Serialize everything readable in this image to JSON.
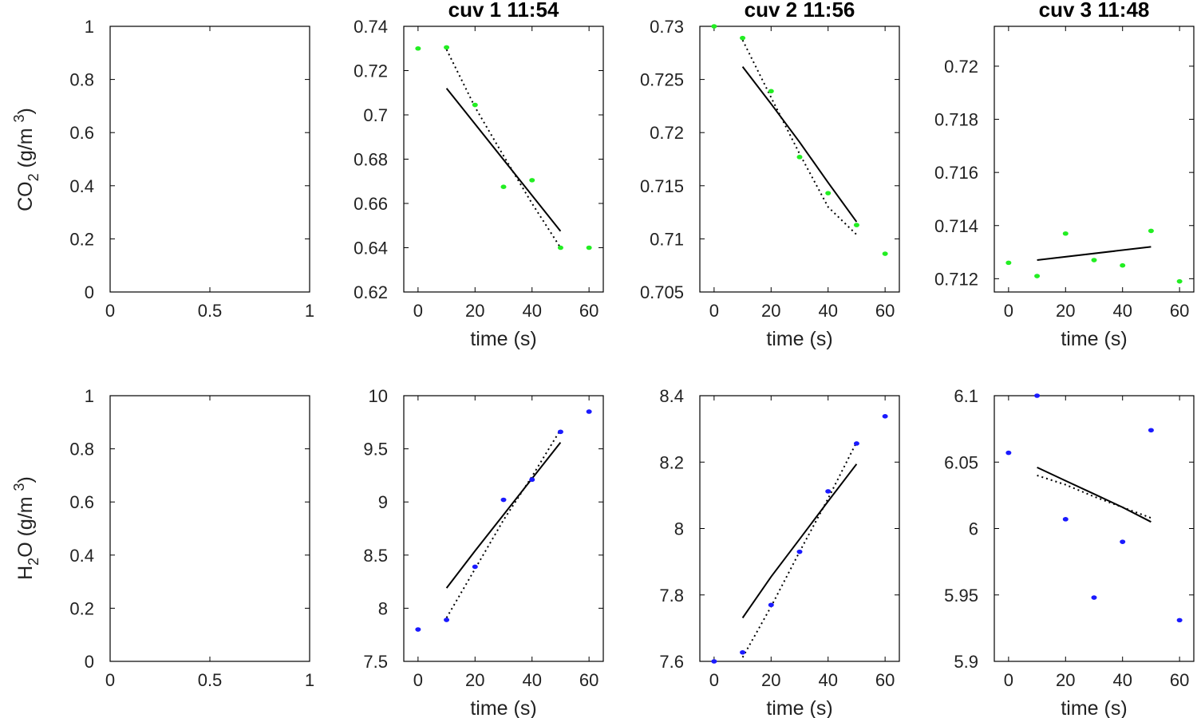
{
  "row_ylabels": [
    {
      "main": "CO",
      "sub": "2",
      "rest": " (g/m ",
      "sup": "3",
      "end": ")"
    },
    {
      "main": "H",
      "sub": "2",
      "rest": "O (g/m ",
      "sup": "3",
      "end": ")"
    }
  ],
  "colors": {
    "co2": "#22ee22",
    "h2o": "#1a1aff",
    "fit": "#000000"
  },
  "chart_data": [
    {
      "id": "co2-empty",
      "type": "scatter",
      "title": "",
      "xlabel": "",
      "ylabel": "CO2 (g/m 3)",
      "xlim": [
        0,
        1
      ],
      "ylim": [
        0,
        1
      ],
      "xticks": [
        0,
        0.5,
        1
      ],
      "xtick_labels": [
        "0",
        "0.5",
        "1"
      ],
      "yticks": [
        0,
        0.2,
        0.4,
        0.6,
        0.8,
        1
      ],
      "ytick_labels": [
        "0",
        "0.2",
        "0.4",
        "0.6",
        "0.8",
        "1"
      ],
      "points": [],
      "fit_solid": [],
      "fit_dotted": []
    },
    {
      "id": "co2-cuv1",
      "type": "scatter",
      "title": "cuv 1 11:54",
      "xlabel": "time (s)",
      "ylabel": "",
      "xlim": [
        -5,
        65
      ],
      "ylim": [
        0.62,
        0.74
      ],
      "xticks": [
        0,
        20,
        40,
        60
      ],
      "xtick_labels": [
        "0",
        "20",
        "40",
        "60"
      ],
      "yticks": [
        0.62,
        0.64,
        0.66,
        0.68,
        0.7,
        0.72,
        0.74
      ],
      "ytick_labels": [
        "0.62",
        "0.64",
        "0.66",
        "0.68",
        "0.7",
        "0.72",
        "0.74"
      ],
      "series_color": "co2",
      "points": [
        [
          0,
          0.73
        ],
        [
          10,
          0.7305
        ],
        [
          20,
          0.7045
        ],
        [
          30,
          0.6675
        ],
        [
          40,
          0.6705
        ],
        [
          50,
          0.64
        ],
        [
          60,
          0.64
        ]
      ],
      "fit_solid": [
        [
          10,
          0.712
        ],
        [
          50,
          0.6475
        ]
      ],
      "fit_dotted": [
        [
          10,
          0.7295
        ],
        [
          20,
          0.7035
        ],
        [
          30,
          0.6815
        ],
        [
          40,
          0.66
        ],
        [
          50,
          0.64
        ]
      ]
    },
    {
      "id": "co2-cuv2",
      "type": "scatter",
      "title": "cuv 2 11:56",
      "xlabel": "time (s)",
      "ylabel": "",
      "xlim": [
        -5,
        65
      ],
      "ylim": [
        0.705,
        0.73
      ],
      "xticks": [
        0,
        20,
        40,
        60
      ],
      "xtick_labels": [
        "0",
        "20",
        "40",
        "60"
      ],
      "yticks": [
        0.705,
        0.71,
        0.715,
        0.72,
        0.725,
        0.73
      ],
      "ytick_labels": [
        "0.705",
        "0.71",
        "0.715",
        "0.72",
        "0.725",
        "0.73"
      ],
      "series_color": "co2",
      "points": [
        [
          0,
          0.73
        ],
        [
          10,
          0.7289
        ],
        [
          20,
          0.7239
        ],
        [
          30,
          0.7177
        ],
        [
          40,
          0.7143
        ],
        [
          50,
          0.7113
        ],
        [
          60,
          0.7086
        ]
      ],
      "fit_solid": [
        [
          10,
          0.7262
        ],
        [
          20,
          0.7227
        ],
        [
          30,
          0.7191
        ],
        [
          40,
          0.7153
        ],
        [
          50,
          0.7116
        ]
      ],
      "fit_dotted": [
        [
          10,
          0.7287
        ],
        [
          20,
          0.7233
        ],
        [
          30,
          0.718
        ],
        [
          40,
          0.713
        ],
        [
          50,
          0.7104
        ]
      ]
    },
    {
      "id": "co2-cuv3",
      "type": "scatter",
      "title": "cuv 3 11:48",
      "xlabel": "time (s)",
      "ylabel": "",
      "xlim": [
        -5,
        65
      ],
      "ylim": [
        0.7115,
        0.7215
      ],
      "xticks": [
        0,
        20,
        40,
        60
      ],
      "xtick_labels": [
        "0",
        "20",
        "40",
        "60"
      ],
      "yticks": [
        0.712,
        0.714,
        0.716,
        0.718,
        0.72
      ],
      "ytick_labels": [
        "0.712",
        "0.714",
        "0.716",
        "0.718",
        "0.72"
      ],
      "series_color": "co2",
      "points": [
        [
          0,
          0.7126
        ],
        [
          10,
          0.7121
        ],
        [
          20,
          0.7137
        ],
        [
          30,
          0.7127
        ],
        [
          40,
          0.7125
        ],
        [
          50,
          0.7138
        ],
        [
          60,
          0.7119
        ]
      ],
      "fit_solid": [
        [
          10,
          0.7127
        ],
        [
          50,
          0.7132
        ]
      ],
      "fit_dotted": []
    },
    {
      "id": "h2o-empty",
      "type": "scatter",
      "title": "",
      "xlabel": "",
      "ylabel": "H2O (g/m 3)",
      "xlim": [
        0,
        1
      ],
      "ylim": [
        0,
        1
      ],
      "xticks": [
        0,
        0.5,
        1
      ],
      "xtick_labels": [
        "0",
        "0.5",
        "1"
      ],
      "yticks": [
        0,
        0.2,
        0.4,
        0.6,
        0.8,
        1
      ],
      "ytick_labels": [
        "0",
        "0.2",
        "0.4",
        "0.6",
        "0.8",
        "1"
      ],
      "points": [],
      "fit_solid": [],
      "fit_dotted": []
    },
    {
      "id": "h2o-cuv1",
      "type": "scatter",
      "title": "",
      "xlabel": "time (s)",
      "ylabel": "",
      "xlim": [
        -5,
        65
      ],
      "ylim": [
        7.5,
        10
      ],
      "xticks": [
        0,
        20,
        40,
        60
      ],
      "xtick_labels": [
        "0",
        "20",
        "40",
        "60"
      ],
      "yticks": [
        7.5,
        8,
        8.5,
        9,
        9.5,
        10
      ],
      "ytick_labels": [
        "7.5",
        "8",
        "8.5",
        "9",
        "9.5",
        "10"
      ],
      "series_color": "h2o",
      "points": [
        [
          0,
          7.8
        ],
        [
          10,
          7.89
        ],
        [
          20,
          8.39
        ],
        [
          30,
          9.02
        ],
        [
          40,
          9.21
        ],
        [
          50,
          9.66
        ],
        [
          60,
          9.85
        ]
      ],
      "fit_solid": [
        [
          10,
          8.19
        ],
        [
          20,
          8.54
        ],
        [
          30,
          8.88
        ],
        [
          40,
          9.22
        ],
        [
          50,
          9.56
        ]
      ],
      "fit_dotted": [
        [
          10,
          7.91
        ],
        [
          20,
          8.37
        ],
        [
          30,
          8.83
        ],
        [
          40,
          9.24
        ],
        [
          50,
          9.68
        ]
      ]
    },
    {
      "id": "h2o-cuv2",
      "type": "scatter",
      "title": "",
      "xlabel": "time (s)",
      "ylabel": "",
      "xlim": [
        -5,
        65
      ],
      "ylim": [
        7.6,
        8.4
      ],
      "xticks": [
        0,
        20,
        40,
        60
      ],
      "xtick_labels": [
        "0",
        "20",
        "40",
        "60"
      ],
      "yticks": [
        7.6,
        7.8,
        8,
        8.2,
        8.4
      ],
      "ytick_labels": [
        "7.6",
        "7.8",
        "8",
        "8.2",
        "8.4"
      ],
      "series_color": "h2o",
      "points": [
        [
          0,
          7.6
        ],
        [
          10,
          7.627
        ],
        [
          20,
          7.77
        ],
        [
          30,
          7.93
        ],
        [
          40,
          8.112
        ],
        [
          50,
          8.256
        ],
        [
          60,
          8.338
        ]
      ],
      "fit_solid": [
        [
          10,
          7.731
        ],
        [
          20,
          7.855
        ],
        [
          30,
          7.968
        ],
        [
          40,
          8.082
        ],
        [
          50,
          8.194
        ]
      ],
      "fit_dotted": [
        [
          10,
          7.612
        ],
        [
          20,
          7.765
        ],
        [
          30,
          7.93
        ],
        [
          40,
          8.09
        ],
        [
          50,
          8.26
        ]
      ]
    },
    {
      "id": "h2o-cuv3",
      "type": "scatter",
      "title": "",
      "xlabel": "time (s)",
      "ylabel": "",
      "xlim": [
        -5,
        65
      ],
      "ylim": [
        5.9,
        6.1
      ],
      "xticks": [
        0,
        20,
        40,
        60
      ],
      "xtick_labels": [
        "0",
        "20",
        "40",
        "60"
      ],
      "yticks": [
        5.9,
        5.95,
        6,
        6.05,
        6.1
      ],
      "ytick_labels": [
        "5.9",
        "5.95",
        "6",
        "6.05",
        "6.1"
      ],
      "series_color": "h2o",
      "points": [
        [
          0,
          6.057
        ],
        [
          10,
          6.1
        ],
        [
          20,
          6.007
        ],
        [
          30,
          5.948
        ],
        [
          40,
          5.99
        ],
        [
          50,
          6.074
        ],
        [
          60,
          5.931
        ]
      ],
      "fit_solid": [
        [
          10,
          6.046
        ],
        [
          20,
          6.036
        ],
        [
          30,
          6.026
        ],
        [
          40,
          6.016
        ],
        [
          50,
          6.005
        ]
      ],
      "fit_dotted": [
        [
          10,
          6.04
        ],
        [
          20,
          6.033
        ],
        [
          30,
          6.024
        ],
        [
          40,
          6.016
        ],
        [
          50,
          6.008
        ]
      ]
    }
  ]
}
